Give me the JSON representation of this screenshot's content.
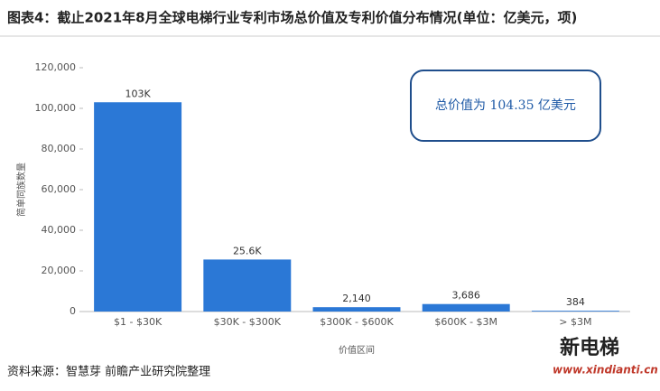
{
  "chart_data": {
    "type": "bar",
    "title": "图表4：截止2021年8月全球电梯行业专利市场总价值及专利价值分布情况(单位：亿美元，项)",
    "annotation": "总价值为 104.35 亿美元",
    "x_label": "价值区间",
    "y_label": "简单同族数量",
    "source": "资料来源：智慧芽 前瞻产业研究院整理",
    "logo": "新电梯",
    "logo_url": "www.xindianti.cn",
    "categories": [
      "$1 - $30K",
      "$30K - $300K",
      "$300K - $600K",
      "$600K - $3M",
      "> $3M"
    ],
    "values": [
      103000,
      25600,
      2140,
      3686,
      384
    ],
    "value_labels": [
      "103K",
      "25.6K",
      "2,140",
      "3,686",
      "384"
    ],
    "color": "#2b78d6",
    "ylim": [
      0,
      120000
    ],
    "yticks": [
      0,
      {
        "value": 20000,
        "label": "20,000"
      },
      {
        "value": 40000,
        "label": "40,000"
      },
      {
        "value": 60000,
        "label": "60,000"
      },
      {
        "value": 80000,
        "label": "80,000"
      },
      {
        "value": 100000,
        "label": "100,000"
      },
      {
        "value": 120000,
        "label": "120,000"
      }
    ],
    "grid": false
  }
}
